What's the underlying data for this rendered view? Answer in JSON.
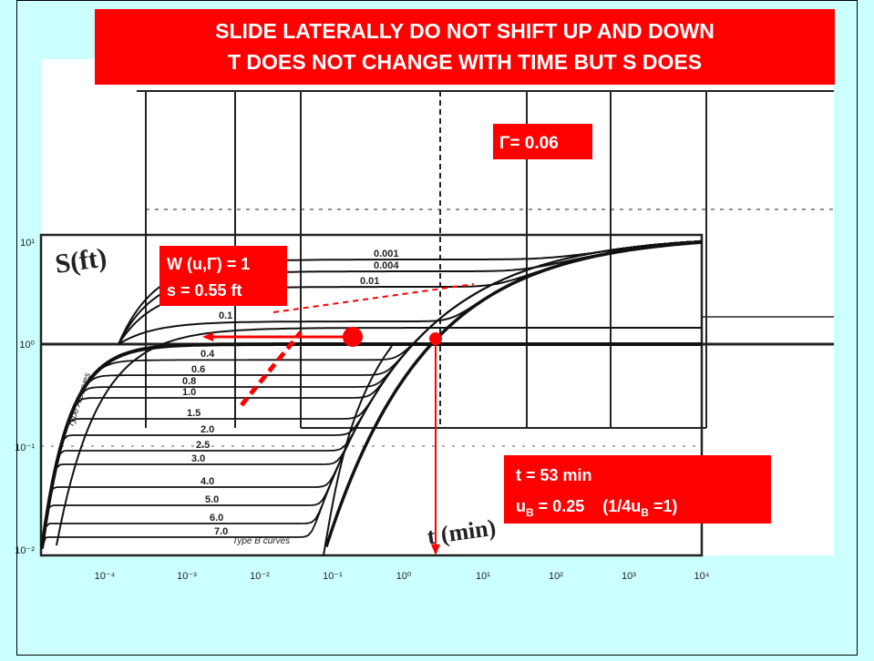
{
  "title_lines": [
    "SLIDE LATERALLY DO NOT SHIFT UP AND DOWN",
    "T DOES NOT CHANGE WITH TIME BUT S DOES"
  ],
  "gamma_box": "Γ= 0.06",
  "match_box": {
    "line1": "W (u,Γ) = 1",
    "line2": "s = 0.55 ft"
  },
  "time_box": {
    "line1": "t = 53 min",
    "line2": [
      "u",
      "B",
      " = 0.25    (1/4u",
      "B",
      " =1)"
    ]
  },
  "chart": {
    "y_label": "S(ft)",
    "x_label": "t (min)",
    "type_a_label": "Type A curves",
    "type_b_label": "Type B curves",
    "curve_labels": [
      "0.001",
      "0.004",
      "0.01",
      "0.1",
      "0.4",
      "0.6",
      "0.8",
      "1.0",
      "1.5",
      "2.0",
      "2.5",
      "3.0",
      "4.0",
      "5.0",
      "6.0",
      "7.0"
    ],
    "x_ticks": [
      "10⁻⁴",
      "10⁻³",
      "10⁻²",
      "10⁻¹",
      "10⁰",
      "10¹",
      "10²",
      "10³",
      "10⁴"
    ],
    "y_ticks": [
      "10¹",
      "10⁰",
      "10⁻¹",
      "10⁻²"
    ]
  }
}
